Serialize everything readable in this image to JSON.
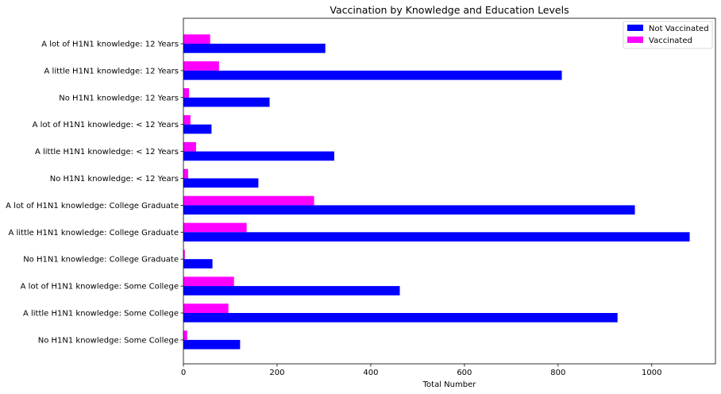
{
  "chart_data": {
    "type": "bar",
    "orientation": "horizontal",
    "title": "Vaccination by Knowledge and Education Levels",
    "xlabel": "Total Number",
    "ylabel": "",
    "xlim": [
      0,
      1136
    ],
    "xticks": [
      0,
      200,
      400,
      600,
      800,
      1000
    ],
    "legend_position": "top-right",
    "categories": [
      "A lot of H1N1 knowledge: 12 Years",
      "A little H1N1 knowledge: 12 Years",
      "No H1N1 knowledge: 12 Years",
      "A lot of H1N1 knowledge: < 12 Years",
      "A little H1N1 knowledge: < 12 Years",
      "No H1N1 knowledge: < 12 Years",
      "A lot of H1N1 knowledge: College Graduate",
      "A little H1N1 knowledge: College Graduate",
      "No H1N1 knowledge: College Graduate",
      "A lot of H1N1 knowledge: Some College",
      "A little H1N1 knowledge: Some College",
      "No H1N1 knowledge: Some College"
    ],
    "series": [
      {
        "name": "Not Vaccinated",
        "color": "#0000ff",
        "values": [
          303,
          808,
          184,
          60,
          322,
          160,
          964,
          1081,
          62,
          462,
          927,
          121
        ]
      },
      {
        "name": "Vaccinated",
        "color": "#ff00ff",
        "values": [
          57,
          76,
          12,
          15,
          27,
          10,
          279,
          135,
          3,
          108,
          96,
          8
        ]
      }
    ]
  }
}
